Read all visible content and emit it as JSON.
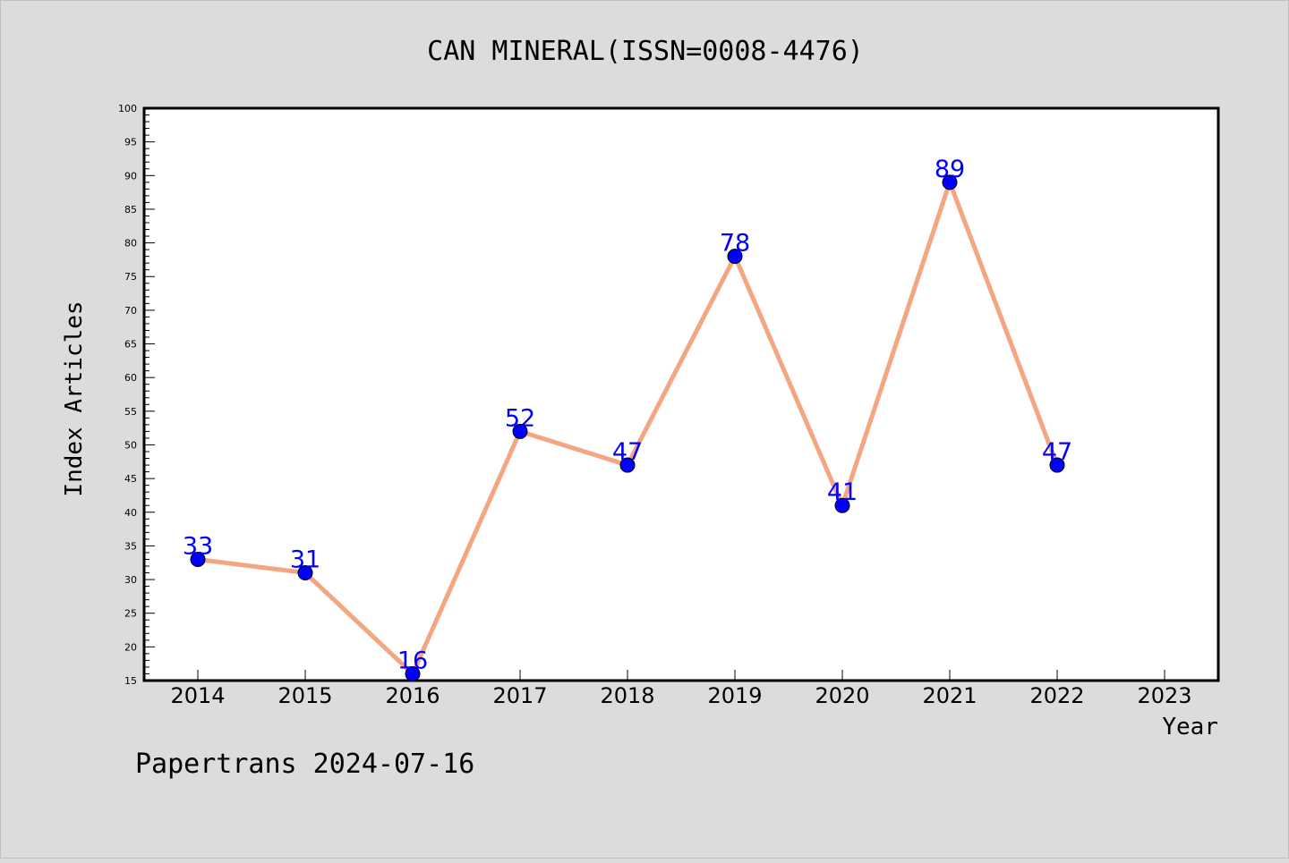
{
  "chart_data": {
    "type": "line",
    "title": "CAN MINERAL(ISSN=0008-4476)",
    "xlabel": "Year",
    "ylabel": "Index Articles",
    "x": [
      "2014",
      "2015",
      "2016",
      "2017",
      "2018",
      "2019",
      "2020",
      "2021",
      "2022"
    ],
    "xticks": [
      "2014",
      "2015",
      "2016",
      "2017",
      "2018",
      "2019",
      "2020",
      "2021",
      "2022",
      "2023"
    ],
    "values": [
      33,
      31,
      16,
      52,
      47,
      78,
      41,
      89,
      47
    ],
    "data_labels": [
      "33",
      "31",
      "16",
      "52",
      "47",
      "78",
      "41",
      "89",
      "47"
    ],
    "ylim": [
      15,
      100
    ],
    "yticks": [
      15,
      20,
      25,
      30,
      35,
      40,
      45,
      50,
      55,
      60,
      65,
      70,
      75,
      80,
      85,
      90,
      95,
      100
    ],
    "grid": false,
    "legend": "none",
    "colors": {
      "background": "#dcdcdc",
      "plot_background": "#ffffff",
      "line": "#f4a582",
      "marker": "#0000ff",
      "data_label": "#0000ff"
    }
  },
  "footer": "Papertrans 2024-07-16"
}
